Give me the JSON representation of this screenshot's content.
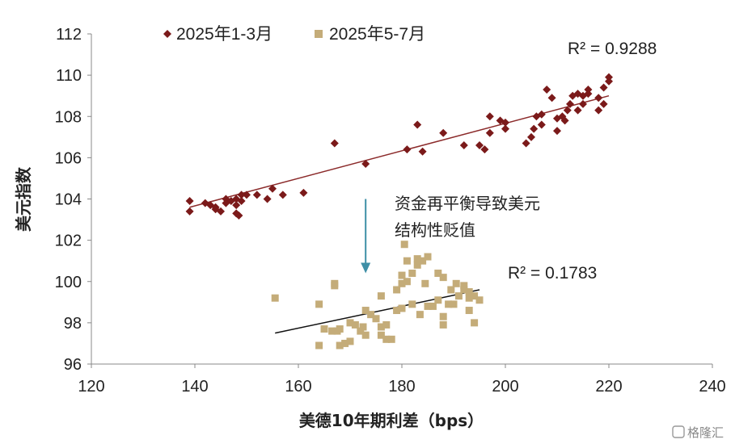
{
  "chart_data": {
    "type": "scatter",
    "xlabel": "美德10年期利差（bps）",
    "ylabel": "美元指数",
    "xlim": [
      120,
      240
    ],
    "ylim": [
      96,
      112
    ],
    "x_ticks": [
      "120",
      "140",
      "160",
      "180",
      "200",
      "220",
      "240"
    ],
    "y_ticks": [
      "96",
      "98",
      "100",
      "102",
      "104",
      "106",
      "108",
      "110",
      "112"
    ],
    "grid": false,
    "legend_position": "top-left",
    "annotation": {
      "line1": "资金再平衡导致美元",
      "line2": "结构性贬值"
    },
    "arrow": {
      "x": 173,
      "y_from": 104,
      "y_to": 100.4
    },
    "watermark": "格隆汇",
    "series": [
      {
        "name": "2025年1-3月",
        "color": "#7B1A1A",
        "marker": "diamond",
        "r2_label": "R² = 0.9288",
        "trendline": {
          "x1": 139,
          "y1": 103.6,
          "x2": 220,
          "y2": 109.0
        },
        "points": [
          [
            139,
            103.9
          ],
          [
            139,
            103.4
          ],
          [
            142,
            103.8
          ],
          [
            143,
            103.7
          ],
          [
            144,
            103.6
          ],
          [
            144,
            103.5
          ],
          [
            145,
            103.4
          ],
          [
            146,
            104.0
          ],
          [
            146,
            103.8
          ],
          [
            147,
            103.9
          ],
          [
            148,
            103.7
          ],
          [
            148,
            104.0
          ],
          [
            148,
            103.3
          ],
          [
            148.5,
            103.2
          ],
          [
            149,
            104.2
          ],
          [
            149,
            103.9
          ],
          [
            150,
            104.2
          ],
          [
            152,
            104.2
          ],
          [
            154,
            104.0
          ],
          [
            155,
            104.5
          ],
          [
            157,
            104.2
          ],
          [
            161,
            104.3
          ],
          [
            167,
            106.7
          ],
          [
            173,
            105.7
          ],
          [
            181,
            106.4
          ],
          [
            183,
            107.6
          ],
          [
            184,
            106.3
          ],
          [
            188,
            107.2
          ],
          [
            192,
            106.6
          ],
          [
            195,
            106.6
          ],
          [
            196,
            106.4
          ],
          [
            197,
            108.0
          ],
          [
            197,
            107.2
          ],
          [
            199,
            107.8
          ],
          [
            200,
            107.7
          ],
          [
            200,
            107.4
          ],
          [
            204,
            106.7
          ],
          [
            205,
            107.0
          ],
          [
            205.5,
            107.4
          ],
          [
            206,
            108.0
          ],
          [
            207,
            108.1
          ],
          [
            207,
            107.6
          ],
          [
            208,
            109.3
          ],
          [
            209,
            108.9
          ],
          [
            210,
            107.3
          ],
          [
            210,
            107.9
          ],
          [
            211,
            108.0
          ],
          [
            211.5,
            107.8
          ],
          [
            212,
            108.3
          ],
          [
            212.5,
            108.6
          ],
          [
            213,
            109.0
          ],
          [
            214,
            108.3
          ],
          [
            214,
            109.1
          ],
          [
            215,
            108.6
          ],
          [
            215,
            109.0
          ],
          [
            216,
            109.1
          ],
          [
            216,
            109.3
          ],
          [
            218,
            108.3
          ],
          [
            218,
            108.9
          ],
          [
            219,
            108.6
          ],
          [
            219,
            109.4
          ],
          [
            220,
            109.7
          ],
          [
            220,
            109.9
          ]
        ]
      },
      {
        "name": "2025年5-7月",
        "color": "#C4AC79",
        "marker": "square",
        "r2_label": "R² = 0.1783",
        "trendline": {
          "x1": 155.5,
          "y1": 97.5,
          "x2": 195,
          "y2": 99.6
        },
        "points": [
          [
            155.5,
            99.2
          ],
          [
            164,
            98.9
          ],
          [
            164,
            96.9
          ],
          [
            165,
            97.7
          ],
          [
            166.5,
            97.6
          ],
          [
            167,
            99.9
          ],
          [
            167,
            99.8
          ],
          [
            167.5,
            97.6
          ],
          [
            168,
            96.9
          ],
          [
            168,
            97.7
          ],
          [
            169,
            97.0
          ],
          [
            170,
            97.1
          ],
          [
            170,
            98.0
          ],
          [
            171,
            97.9
          ],
          [
            172,
            97.6
          ],
          [
            172.5,
            97.8
          ],
          [
            173,
            98.6
          ],
          [
            173,
            97.4
          ],
          [
            174,
            98.4
          ],
          [
            175,
            98.2
          ],
          [
            176,
            99.3
          ],
          [
            176,
            97.8
          ],
          [
            176,
            97.4
          ],
          [
            177,
            97.9
          ],
          [
            177,
            97.2
          ],
          [
            178,
            97.2
          ],
          [
            179,
            98.6
          ],
          [
            179,
            99.6
          ],
          [
            180,
            98.7
          ],
          [
            180,
            99.9
          ],
          [
            180,
            100.3
          ],
          [
            180.5,
            101.8
          ],
          [
            181,
            101.0
          ],
          [
            181,
            100.0
          ],
          [
            182,
            98.9
          ],
          [
            182,
            100.4
          ],
          [
            183,
            100.8
          ],
          [
            183,
            101.1
          ],
          [
            183.5,
            98.4
          ],
          [
            184,
            101.0
          ],
          [
            184.5,
            99.9
          ],
          [
            185,
            101.2
          ],
          [
            185,
            98.8
          ],
          [
            186,
            98.8
          ],
          [
            187,
            99.1
          ],
          [
            187,
            100.4
          ],
          [
            188,
            98.3
          ],
          [
            188,
            97.9
          ],
          [
            188,
            100.2
          ],
          [
            189,
            98.9
          ],
          [
            189.5,
            99.6
          ],
          [
            190,
            98.9
          ],
          [
            190.5,
            99.9
          ],
          [
            191,
            99.3
          ],
          [
            192,
            99.8
          ],
          [
            192,
            99.6
          ],
          [
            193,
            99.5
          ],
          [
            193,
            99.2
          ],
          [
            193,
            98.6
          ],
          [
            194,
            99.3
          ],
          [
            194,
            98.0
          ],
          [
            195,
            99.1
          ]
        ]
      }
    ]
  }
}
